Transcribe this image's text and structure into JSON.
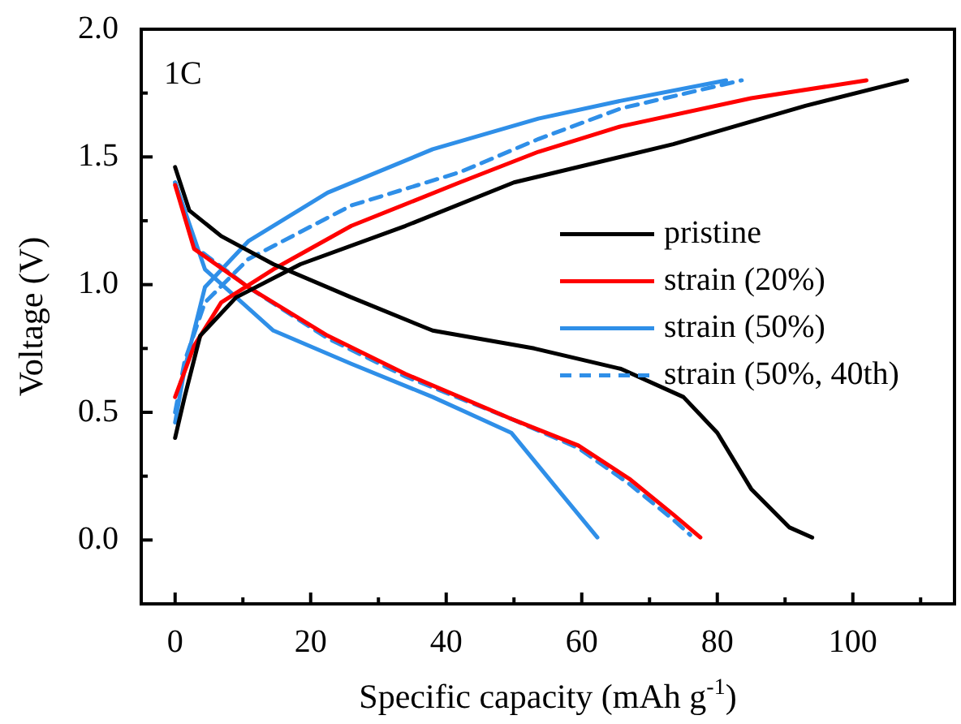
{
  "chart_data": {
    "type": "line",
    "xlabel": "Specific capacity (mAh g$^{-1}$)",
    "ylabel": "Voltage (V)",
    "annotations": [
      "1C"
    ],
    "xlim": [
      -5,
      115
    ],
    "ylim": [
      -0.25,
      2.0
    ],
    "xticks": [
      0,
      {
        "value": 10,
        "label": null
      },
      20,
      {
        "value": 30,
        "label": null
      },
      40,
      {
        "value": 50,
        "label": null
      },
      60,
      {
        "value": 70,
        "label": null
      },
      80,
      {
        "value": 90,
        "label": null
      },
      100,
      {
        "value": 110,
        "label": null
      }
    ],
    "yticks": [
      {
        "value": 0,
        "label": "0.0"
      },
      {
        "value": 0.25,
        "label": null
      },
      {
        "value": 0.5,
        "label": "0.5"
      },
      {
        "value": 0.75,
        "label": null
      },
      {
        "value": 1,
        "label": "1.0"
      },
      {
        "value": 1.25,
        "label": null
      },
      {
        "value": 1.5,
        "label": "1.5"
      },
      {
        "value": 1.75,
        "label": null
      },
      {
        "value": 2,
        "label": "2.0"
      }
    ],
    "grid": false,
    "legend": "right",
    "marker": "none",
    "series": [
      {
        "name": "pristine",
        "color": "#000000",
        "line_style": "solid",
        "x": [
          0,
          2.1,
          6.8,
          14.5,
          26,
          38,
          53,
          65.8,
          75,
          80,
          85,
          90.6,
          94
        ],
        "values": [
          1.46,
          1.29,
          1.19,
          1.08,
          0.95,
          0.82,
          0.75,
          0.67,
          0.56,
          0.42,
          0.2,
          0.05,
          0.01
        ]
      },
      {
        "color": "#000000",
        "line_style": "solid",
        "x": [
          0,
          1.4,
          3.7,
          9,
          18.5,
          34,
          50,
          73.5,
          93,
          108
        ],
        "values": [
          0.4,
          0.56,
          0.8,
          0.95,
          1.08,
          1.23,
          1.4,
          1.55,
          1.7,
          1.8
        ]
      },
      {
        "name": "strain (20%)",
        "color": "#ff0000",
        "line_style": "solid",
        "x": [
          0,
          2.8,
          10.8,
          22.5,
          34,
          50,
          59.5,
          67,
          73.5,
          77.5
        ],
        "values": [
          1.39,
          1.14,
          0.99,
          0.8,
          0.65,
          0.47,
          0.37,
          0.24,
          0.1,
          0.01
        ]
      },
      {
        "color": "#ff0000",
        "line_style": "solid",
        "x": [
          0,
          2.8,
          6.8,
          14.5,
          26,
          42,
          53.6,
          65.8,
          85,
          102
        ],
        "values": [
          0.56,
          0.76,
          0.93,
          1.06,
          1.23,
          1.4,
          1.52,
          1.62,
          1.73,
          1.8
        ]
      },
      {
        "name": "strain (50%)",
        "color": "#2f8fe8",
        "line_style": "solid",
        "x": [
          0,
          4.4,
          14.5,
          26,
          38,
          49.6,
          56.4,
          62.3
        ],
        "values": [
          1.4,
          1.06,
          0.82,
          0.69,
          0.56,
          0.42,
          0.2,
          0.01
        ]
      },
      {
        "color": "#2f8fe8",
        "line_style": "solid",
        "x": [
          0,
          1.4,
          4.4,
          10.8,
          22.5,
          38,
          53.6,
          65.8,
          81.3
        ],
        "values": [
          0.46,
          0.67,
          0.99,
          1.17,
          1.36,
          1.53,
          1.65,
          1.72,
          1.8
        ]
      },
      {
        "name": "strain (50%, 40th)",
        "color": "#2f8fe8",
        "line_style": "dashed",
        "x": [
          0,
          2.8,
          10.8,
          22.5,
          34,
          50,
          59.5,
          67,
          73.5,
          76
        ],
        "values": [
          1.4,
          1.15,
          0.99,
          0.79,
          0.64,
          0.47,
          0.36,
          0.22,
          0.08,
          0.02
        ]
      },
      {
        "color": "#2f8fe8",
        "line_style": "dashed",
        "x": [
          0,
          1.4,
          4.4,
          10.8,
          26,
          42,
          53.6,
          65.8,
          83.6
        ],
        "values": [
          0.5,
          0.7,
          0.93,
          1.1,
          1.31,
          1.44,
          1.57,
          1.69,
          1.8
        ]
      }
    ]
  }
}
